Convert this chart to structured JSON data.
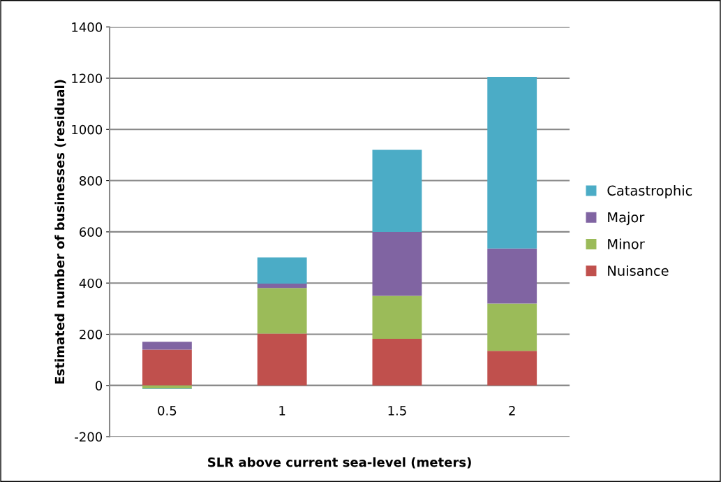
{
  "chart_data": {
    "type": "bar",
    "stacked": true,
    "xlabel": "SLR above current sea-level (meters)",
    "ylabel": "Estimated number of businesses (residual)",
    "categories": [
      "0.5",
      "1",
      "1.5",
      "2"
    ],
    "series": [
      {
        "name": "Nuisance",
        "color": "#c0504d",
        "values": [
          140,
          203,
          182,
          135
        ]
      },
      {
        "name": "Minor",
        "color": "#9bbb59",
        "values": [
          -12,
          178,
          168,
          185
        ]
      },
      {
        "name": "Major",
        "color": "#8064a2",
        "values": [
          31,
          17,
          250,
          215
        ]
      },
      {
        "name": "Catastrophic",
        "color": "#4bacc6",
        "values": [
          -2,
          102,
          320,
          670
        ]
      }
    ],
    "ylim": [
      -200,
      1400
    ],
    "yticks": [
      -200,
      0,
      200,
      400,
      600,
      800,
      1000,
      1200,
      1400
    ],
    "grid": "y",
    "legend": "right"
  }
}
